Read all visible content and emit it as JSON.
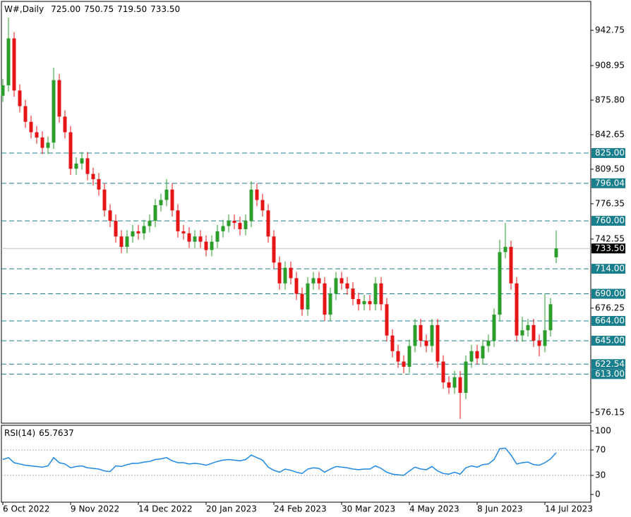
{
  "chart_data": [
    {
      "type": "candlestick",
      "title": "W#,Daily",
      "header_values": [
        "725.00",
        "750.75",
        "719.50",
        "733.50"
      ],
      "categories": [
        "6 Oct 2022",
        null,
        null,
        null,
        null,
        null,
        null,
        null,
        null,
        null,
        null,
        null,
        "9 Nov 2022",
        null,
        null,
        null,
        null,
        null,
        null,
        null,
        null,
        null,
        null,
        null,
        "14 Dec 2022",
        null,
        null,
        null,
        null,
        null,
        null,
        null,
        null,
        null,
        null,
        null,
        "20 Jan 2023",
        null,
        null,
        null,
        null,
        null,
        null,
        null,
        null,
        null,
        null,
        null,
        "24 Feb 2023",
        null,
        null,
        null,
        null,
        null,
        null,
        null,
        null,
        null,
        null,
        null,
        "30 Mar 2023",
        null,
        null,
        null,
        null,
        null,
        null,
        null,
        null,
        null,
        null,
        null,
        "4 May 2023",
        null,
        null,
        null,
        null,
        null,
        null,
        null,
        null,
        null,
        null,
        null,
        "8 Jun 2023",
        null,
        null,
        null,
        null,
        null,
        null,
        null,
        null,
        null,
        null,
        null,
        "14 Jul 2023",
        null,
        null
      ],
      "open": [
        880,
        890,
        935,
        885,
        870,
        855,
        845,
        840,
        830,
        835,
        895,
        860,
        845,
        810,
        815,
        820,
        805,
        800,
        790,
        770,
        760,
        745,
        735,
        745,
        750,
        748,
        755,
        760,
        775,
        780,
        790,
        770,
        750,
        748,
        740,
        745,
        740,
        732,
        740,
        750,
        755,
        760,
        758,
        752,
        760,
        790,
        780,
        770,
        745,
        720,
        700,
        715,
        705,
        690,
        675,
        700,
        705,
        700,
        670,
        690,
        705,
        700,
        695,
        685,
        680,
        683,
        680,
        700,
        680,
        650,
        635,
        625,
        620,
        640,
        660,
        645,
        640,
        660,
        625,
        605,
        600,
        610,
        595,
        625,
        635,
        628,
        640,
        645,
        670,
        730,
        735,
        700,
        650,
        655,
        660,
        645,
        640,
        655,
        725
      ],
      "high": [
        896,
        955,
        941,
        891,
        876,
        861,
        851,
        846,
        841,
        907,
        901,
        866,
        851,
        821,
        826,
        826,
        811,
        806,
        796,
        776,
        766,
        751,
        751,
        756,
        756,
        761,
        766,
        781,
        786,
        800,
        796,
        776,
        756,
        754,
        751,
        751,
        746,
        746,
        756,
        761,
        766,
        766,
        764,
        766,
        798,
        796,
        786,
        776,
        751,
        726,
        721,
        721,
        711,
        696,
        706,
        711,
        711,
        706,
        696,
        711,
        711,
        706,
        701,
        691,
        689,
        689,
        706,
        706,
        686,
        656,
        641,
        631,
        646,
        666,
        666,
        651,
        666,
        666,
        631,
        611,
        616,
        616,
        631,
        641,
        641,
        646,
        651,
        676,
        742,
        758,
        741,
        706,
        668,
        666,
        666,
        651,
        690,
        686,
        750.75
      ],
      "low": [
        874,
        884,
        879,
        864,
        849,
        839,
        834,
        824,
        824,
        829,
        854,
        839,
        804,
        804,
        809,
        799,
        794,
        784,
        764,
        754,
        739,
        729,
        729,
        739,
        742,
        742,
        749,
        754,
        769,
        774,
        764,
        744,
        742,
        734,
        734,
        734,
        726,
        726,
        734,
        744,
        749,
        752,
        746,
        746,
        754,
        774,
        764,
        739,
        714,
        694,
        694,
        699,
        684,
        669,
        669,
        694,
        694,
        664,
        664,
        684,
        694,
        689,
        679,
        674,
        674,
        674,
        674,
        674,
        644,
        629,
        619,
        614,
        614,
        634,
        639,
        634,
        634,
        619,
        599,
        594,
        594,
        570,
        589,
        619,
        622,
        622,
        634,
        639,
        664,
        724,
        694,
        644,
        644,
        649,
        639,
        630,
        634,
        649,
        719.5
      ],
      "close": [
        890,
        935,
        885,
        870,
        855,
        845,
        840,
        830,
        835,
        895,
        860,
        845,
        810,
        815,
        820,
        805,
        800,
        790,
        770,
        760,
        745,
        735,
        745,
        750,
        748,
        755,
        760,
        775,
        780,
        790,
        770,
        750,
        748,
        740,
        745,
        740,
        732,
        740,
        750,
        755,
        760,
        758,
        752,
        760,
        790,
        780,
        770,
        745,
        720,
        700,
        715,
        705,
        690,
        675,
        700,
        705,
        700,
        670,
        690,
        705,
        700,
        695,
        685,
        680,
        683,
        680,
        700,
        680,
        650,
        635,
        625,
        620,
        640,
        660,
        645,
        640,
        660,
        625,
        605,
        600,
        610,
        595,
        625,
        635,
        628,
        640,
        645,
        670,
        730,
        735,
        700,
        650,
        655,
        660,
        645,
        640,
        655,
        680,
        733.5
      ],
      "ylim": [
        565.88,
        970.49
      ],
      "yticks": [
        942.75,
        908.95,
        {
          "value": 875.8,
          "label": "875.80"
        },
        842.65,
        {
          "value": 809.5,
          "label": "809.50"
        },
        776.35,
        742.55,
        676.25,
        576.15
      ],
      "levels": [
        {
          "value": 825,
          "label": "825.00"
        },
        {
          "value": 796.04,
          "label": "796.04"
        },
        {
          "value": 760,
          "label": "760.00"
        },
        {
          "value": 714,
          "label": "714.00"
        },
        {
          "value": 690,
          "label": "690.00"
        },
        {
          "value": 664,
          "label": "664.00"
        },
        {
          "value": 645,
          "label": "645.00"
        },
        {
          "value": 622.54,
          "label": "622.54"
        },
        {
          "value": 613,
          "label": "613.00"
        }
      ],
      "current_price": {
        "value": 733.5,
        "label": "733.50"
      },
      "up_color": "#2a9d2a",
      "down_color": "#e31515",
      "level_color": "#1a7f8c"
    },
    {
      "type": "line",
      "title": "RSI(14)",
      "values": [
        55,
        58,
        50,
        48,
        46,
        45,
        44,
        43,
        45,
        58,
        50,
        48,
        42,
        44,
        45,
        42,
        41,
        40,
        37,
        36,
        45,
        44,
        47,
        49,
        49,
        51,
        52,
        55,
        56,
        58,
        53,
        50,
        50,
        48,
        49,
        48,
        46,
        49,
        52,
        54,
        55,
        54,
        53,
        55,
        62,
        58,
        54,
        43,
        38,
        35,
        40,
        38,
        35,
        33,
        40,
        42,
        41,
        35,
        40,
        44,
        43,
        42,
        40,
        39,
        40,
        40,
        45,
        41,
        35,
        32,
        31,
        30,
        37,
        43,
        40,
        39,
        44,
        37,
        33,
        32,
        35,
        32,
        42,
        45,
        43,
        47,
        48,
        55,
        72,
        73,
        62,
        48,
        50,
        51,
        47,
        46,
        50,
        56,
        65.7637
      ],
      "ylim": [
        -12.2,
        108.9
      ],
      "yticks": [
        100,
        70,
        30,
        0
      ],
      "levels": [
        70,
        30
      ],
      "color": "#1e88e5"
    }
  ]
}
